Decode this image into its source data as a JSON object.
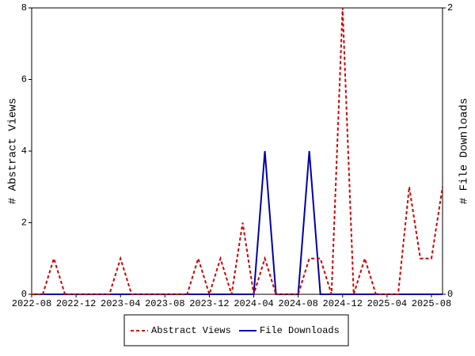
{
  "chart_data": {
    "type": "line",
    "x": [
      "2022-08",
      null,
      null,
      null,
      "2022-12",
      null,
      null,
      null,
      "2023-04",
      null,
      null,
      null,
      "2023-08",
      null,
      null,
      null,
      "2023-12",
      null,
      null,
      null,
      "2024-04",
      null,
      null,
      null,
      "2024-08",
      null,
      null,
      null,
      "2024-12",
      null,
      null,
      null,
      "2025-04",
      null,
      null,
      null,
      "2025-08",
      null
    ],
    "series": [
      {
        "name": "Abstract Views",
        "color": "#cc0000",
        "axis": "y",
        "values": [
          0,
          0,
          1,
          0,
          0,
          0,
          0,
          0,
          1,
          0,
          0,
          0,
          0,
          0,
          0,
          1,
          0,
          1,
          0,
          2,
          0,
          1,
          0,
          0,
          0,
          1,
          1,
          0,
          8,
          0,
          1,
          0,
          0,
          0,
          3,
          1,
          1,
          3
        ]
      },
      {
        "name": "File Downloads",
        "color": "#0000aa",
        "axis": "y2",
        "values": [
          0,
          0,
          0,
          0,
          0,
          0,
          0,
          0,
          0,
          0,
          0,
          0,
          0,
          0,
          0,
          0,
          0,
          0,
          0,
          0,
          0,
          1,
          0,
          0,
          0,
          1,
          0,
          0,
          0,
          0,
          0,
          0,
          0,
          0,
          0,
          0,
          0,
          0
        ]
      }
    ],
    "ylabel": "# Abstract Views",
    "y2label": "# File Downloads",
    "ylim": [
      0,
      8
    ],
    "yticks": [
      0,
      2,
      4,
      6,
      8
    ],
    "y2lim": [
      0,
      2
    ],
    "y2ticks": [
      0,
      2
    ]
  }
}
